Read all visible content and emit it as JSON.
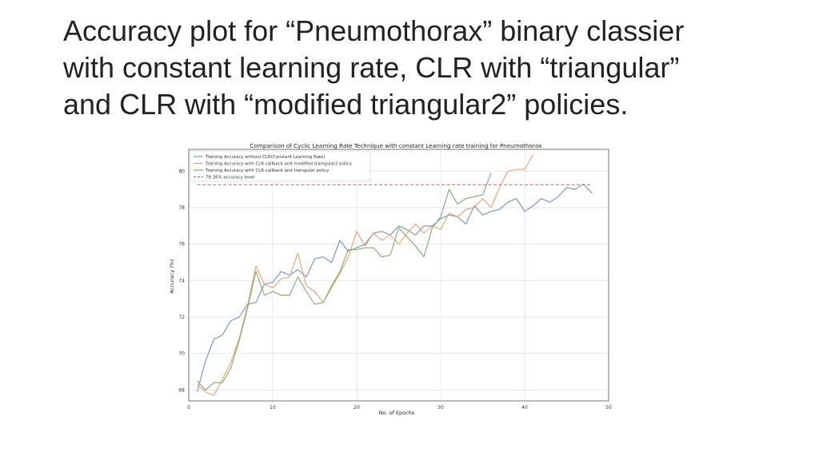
{
  "slide": {
    "title": "Accuracy plot for “Pneumothorax” binary classier\nwith constant learning rate, CLR with “triangular”\nand CLR with “modified triangular2” policies."
  },
  "chart_data": {
    "type": "line",
    "title": "Comparison of Cyclic Learning Rate Technique with constant Learning rate training for Pneumothorax",
    "xlabel": "No. of Epochs",
    "ylabel": "Accuracy (%)",
    "xlim": [
      0,
      50
    ],
    "ylim": [
      67.4,
      81.2
    ],
    "xticks": [
      0,
      10,
      20,
      30,
      40,
      50
    ],
    "yticks": [
      68,
      70,
      72,
      74,
      76,
      78,
      80
    ],
    "grid": true,
    "legend_position": "top-left",
    "series": [
      {
        "name": "Training Accuracy without CLR(Constant Learning Rate)",
        "color": "#6e8ebf",
        "style": "solid",
        "x": [
          1,
          2,
          3,
          4,
          5,
          6,
          7,
          8,
          9,
          10,
          11,
          12,
          13,
          14,
          15,
          16,
          17,
          18,
          19,
          20,
          21,
          22,
          23,
          24,
          25,
          26,
          27,
          28,
          29,
          30,
          31,
          32,
          33,
          34,
          35,
          36,
          37,
          38,
          39,
          40,
          41,
          42,
          43,
          44,
          45,
          46,
          47,
          48
        ],
        "values": [
          67.9,
          69.6,
          70.8,
          71.0,
          71.8,
          72.0,
          72.7,
          72.8,
          73.8,
          73.9,
          74.5,
          74.3,
          74.6,
          74.2,
          75.2,
          75.3,
          75.0,
          76.2,
          75.6,
          75.8,
          76.0,
          76.6,
          76.7,
          76.5,
          77.0,
          76.8,
          76.5,
          77.0,
          77.0,
          77.4,
          77.6,
          77.5,
          77.1,
          78.1,
          77.6,
          77.8,
          77.9,
          78.3,
          78.5,
          77.8,
          78.1,
          78.5,
          78.3,
          78.6,
          79.1,
          79.0,
          79.3,
          78.8
        ]
      },
      {
        "name": "Training Accuracy with CLR callback and modified traingular2 policy",
        "color": "#e8a06b",
        "style": "solid",
        "x": [
          1,
          2,
          3,
          4,
          5,
          6,
          7,
          8,
          9,
          10,
          11,
          12,
          13,
          14,
          15,
          16,
          17,
          18,
          19,
          20,
          21,
          22,
          23,
          24,
          25,
          26,
          27,
          28,
          29,
          30,
          31,
          32,
          33,
          34,
          35,
          36,
          37,
          38,
          39,
          40,
          41
        ],
        "values": [
          68.3,
          67.9,
          67.7,
          68.6,
          69.5,
          70.8,
          72.6,
          74.8,
          73.8,
          73.6,
          74.1,
          74.2,
          75.5,
          73.7,
          73.4,
          72.8,
          73.6,
          74.4,
          75.3,
          76.7,
          75.9,
          76.6,
          76.2,
          76.5,
          76.0,
          76.6,
          77.1,
          76.6,
          77.0,
          76.8,
          77.7,
          77.5,
          77.9,
          78.0,
          78.5,
          78.0,
          79.1,
          80.0,
          80.1,
          80.1,
          80.9
        ]
      },
      {
        "name": "Training Accuracy with CLR callback and traingular policy",
        "color": "#7aad6a",
        "style": "solid",
        "x": [
          1,
          2,
          3,
          4,
          5,
          6,
          7,
          8,
          9,
          10,
          11,
          12,
          13,
          14,
          15,
          16,
          17,
          18,
          19,
          20,
          21,
          22,
          23,
          24,
          25,
          26,
          27,
          28,
          29,
          30,
          31,
          32,
          33,
          34,
          35,
          36
        ],
        "values": [
          68.5,
          68.0,
          68.4,
          68.4,
          69.2,
          70.7,
          72.5,
          74.5,
          73.2,
          73.4,
          73.2,
          73.2,
          74.2,
          73.4,
          72.7,
          72.8,
          73.7,
          74.5,
          75.7,
          75.7,
          75.8,
          75.8,
          75.3,
          75.4,
          76.9,
          76.4,
          75.9,
          75.3,
          76.9,
          77.5,
          79.0,
          78.2,
          78.5,
          78.6,
          78.7,
          79.9
        ]
      },
      {
        "name": "79.26% accuracy level",
        "color": "#d05050",
        "style": "dashed",
        "x": [
          1,
          48
        ],
        "values": [
          79.26,
          79.26
        ]
      }
    ]
  }
}
